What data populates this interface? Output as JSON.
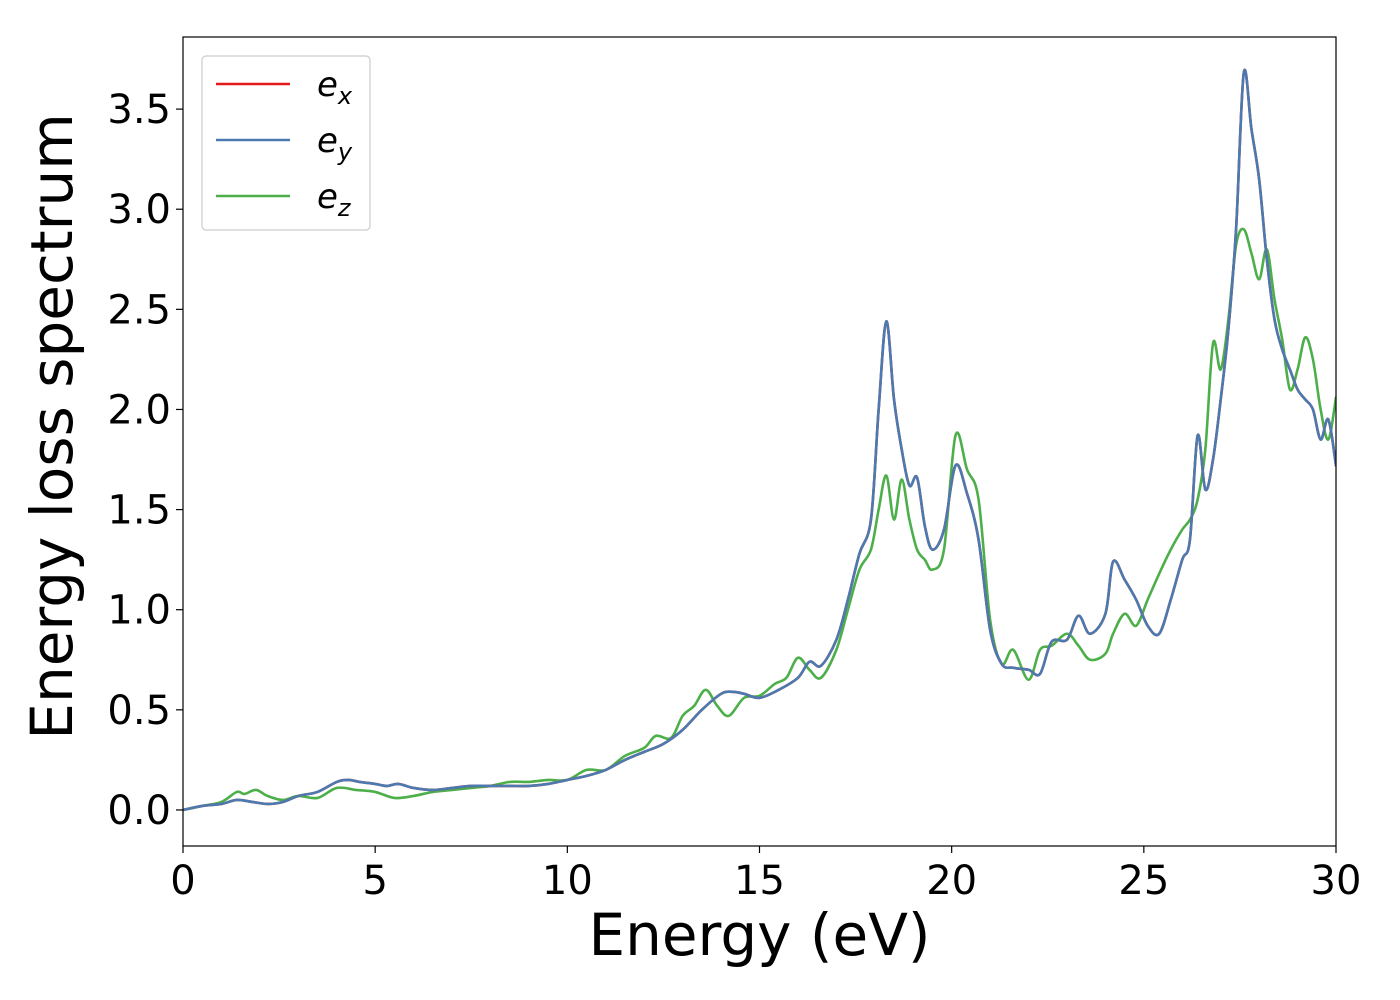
{
  "chart_data": {
    "type": "line",
    "title": "",
    "xlabel": "Energy (eV)",
    "ylabel": "Energy loss spectrum",
    "xlim": [
      0,
      30
    ],
    "ylim": [
      -0.18,
      3.86
    ],
    "xticks": [
      0,
      5,
      10,
      15,
      20,
      25,
      30
    ],
    "xtick_labels": [
      "0",
      "5",
      "10",
      "15",
      "20",
      "25",
      "30"
    ],
    "yticks": [
      0.0,
      0.5,
      1.0,
      1.5,
      2.0,
      2.5,
      3.0,
      3.5
    ],
    "ytick_labels": [
      "0.0",
      "0.5",
      "1.0",
      "1.5",
      "2.0",
      "2.5",
      "3.0",
      "3.5"
    ],
    "grid": false,
    "legend_position": "top-left",
    "series": [
      {
        "name": "e_x",
        "legend_base": "e",
        "legend_sub": "x",
        "color": "#e41a1c",
        "x": [
          0,
          0.5,
          1.0,
          1.4,
          1.8,
          2.2,
          2.6,
          3.0,
          3.5,
          4.0,
          4.3,
          4.6,
          5.0,
          5.3,
          5.6,
          6.0,
          6.5,
          7.0,
          7.5,
          8.0,
          8.5,
          9.0,
          9.5,
          10.0,
          10.5,
          11.0,
          11.5,
          12.0,
          12.5,
          13.0,
          13.5,
          14.0,
          14.3,
          14.6,
          15.0,
          15.5,
          16.0,
          16.3,
          16.6,
          17.0,
          17.3,
          17.6,
          17.9,
          18.1,
          18.3,
          18.5,
          18.7,
          18.9,
          19.1,
          19.3,
          19.5,
          19.8,
          20.1,
          20.4,
          20.7,
          21.0,
          21.3,
          21.6,
          22.0,
          22.3,
          22.6,
          23.0,
          23.3,
          23.6,
          24.0,
          24.2,
          24.5,
          24.8,
          25.1,
          25.4,
          25.7,
          26.0,
          26.2,
          26.4,
          26.6,
          26.8,
          27.0,
          27.2,
          27.4,
          27.6,
          27.8,
          28.0,
          28.2,
          28.4,
          28.6,
          28.8,
          29.0,
          29.2,
          29.4,
          29.6,
          29.8,
          30.0
        ],
        "y": [
          0.0,
          0.02,
          0.03,
          0.05,
          0.04,
          0.03,
          0.04,
          0.07,
          0.09,
          0.14,
          0.15,
          0.14,
          0.13,
          0.12,
          0.13,
          0.11,
          0.1,
          0.11,
          0.12,
          0.12,
          0.12,
          0.12,
          0.13,
          0.15,
          0.17,
          0.2,
          0.25,
          0.29,
          0.33,
          0.4,
          0.5,
          0.58,
          0.59,
          0.58,
          0.56,
          0.6,
          0.66,
          0.74,
          0.72,
          0.85,
          1.05,
          1.28,
          1.45,
          2.0,
          2.44,
          2.05,
          1.8,
          1.62,
          1.66,
          1.42,
          1.3,
          1.4,
          1.72,
          1.58,
          1.35,
          0.9,
          0.73,
          0.71,
          0.7,
          0.68,
          0.84,
          0.85,
          0.97,
          0.88,
          0.98,
          1.24,
          1.15,
          1.05,
          0.92,
          0.88,
          1.05,
          1.25,
          1.35,
          1.87,
          1.6,
          1.75,
          2.05,
          2.4,
          2.9,
          3.68,
          3.4,
          3.15,
          2.75,
          2.45,
          2.3,
          2.2,
          2.1,
          2.05,
          2.0,
          1.85,
          1.95,
          1.72
        ]
      },
      {
        "name": "e_y",
        "legend_base": "e",
        "legend_sub": "y",
        "color": "#4a7ab0",
        "x": [
          0,
          0.5,
          1.0,
          1.4,
          1.8,
          2.2,
          2.6,
          3.0,
          3.5,
          4.0,
          4.3,
          4.6,
          5.0,
          5.3,
          5.6,
          6.0,
          6.5,
          7.0,
          7.5,
          8.0,
          8.5,
          9.0,
          9.5,
          10.0,
          10.5,
          11.0,
          11.5,
          12.0,
          12.5,
          13.0,
          13.5,
          14.0,
          14.3,
          14.6,
          15.0,
          15.5,
          16.0,
          16.3,
          16.6,
          17.0,
          17.3,
          17.6,
          17.9,
          18.1,
          18.3,
          18.5,
          18.7,
          18.9,
          19.1,
          19.3,
          19.5,
          19.8,
          20.1,
          20.4,
          20.7,
          21.0,
          21.3,
          21.6,
          22.0,
          22.3,
          22.6,
          23.0,
          23.3,
          23.6,
          24.0,
          24.2,
          24.5,
          24.8,
          25.1,
          25.4,
          25.7,
          26.0,
          26.2,
          26.4,
          26.6,
          26.8,
          27.0,
          27.2,
          27.4,
          27.6,
          27.8,
          28.0,
          28.2,
          28.4,
          28.6,
          28.8,
          29.0,
          29.2,
          29.4,
          29.6,
          29.8,
          30.0
        ],
        "y": [
          0.0,
          0.02,
          0.03,
          0.05,
          0.04,
          0.03,
          0.04,
          0.07,
          0.09,
          0.14,
          0.15,
          0.14,
          0.13,
          0.12,
          0.13,
          0.11,
          0.1,
          0.11,
          0.12,
          0.12,
          0.12,
          0.12,
          0.13,
          0.15,
          0.17,
          0.2,
          0.25,
          0.29,
          0.33,
          0.4,
          0.5,
          0.58,
          0.59,
          0.58,
          0.56,
          0.6,
          0.66,
          0.74,
          0.72,
          0.85,
          1.05,
          1.28,
          1.45,
          2.0,
          2.44,
          2.05,
          1.8,
          1.62,
          1.66,
          1.42,
          1.3,
          1.4,
          1.72,
          1.58,
          1.35,
          0.9,
          0.73,
          0.71,
          0.7,
          0.68,
          0.84,
          0.85,
          0.97,
          0.88,
          0.98,
          1.24,
          1.15,
          1.05,
          0.92,
          0.88,
          1.05,
          1.25,
          1.35,
          1.87,
          1.6,
          1.75,
          2.05,
          2.4,
          2.9,
          3.68,
          3.4,
          3.15,
          2.75,
          2.45,
          2.3,
          2.2,
          2.1,
          2.05,
          2.0,
          1.85,
          1.95,
          1.72
        ]
      },
      {
        "name": "e_z",
        "legend_base": "e",
        "legend_sub": "z",
        "color": "#4daf4a",
        "x": [
          0,
          0.5,
          1.0,
          1.4,
          1.6,
          1.9,
          2.2,
          2.6,
          3.0,
          3.5,
          4.0,
          4.5,
          5.0,
          5.5,
          6.0,
          6.5,
          7.0,
          7.5,
          8.0,
          8.5,
          9.0,
          9.5,
          10.0,
          10.5,
          11.0,
          11.5,
          12.0,
          12.3,
          12.7,
          13.0,
          13.3,
          13.6,
          13.9,
          14.2,
          14.6,
          15.0,
          15.4,
          15.7,
          16.0,
          16.3,
          16.6,
          17.0,
          17.3,
          17.6,
          17.9,
          18.1,
          18.3,
          18.5,
          18.7,
          18.9,
          19.1,
          19.3,
          19.5,
          19.8,
          20.1,
          20.4,
          20.7,
          21.0,
          21.3,
          21.6,
          22.0,
          22.3,
          22.6,
          23.0,
          23.3,
          23.6,
          24.0,
          24.2,
          24.5,
          24.8,
          25.1,
          25.4,
          25.7,
          26.0,
          26.2,
          26.4,
          26.6,
          26.8,
          27.0,
          27.2,
          27.4,
          27.6,
          27.8,
          28.0,
          28.2,
          28.4,
          28.6,
          28.8,
          29.0,
          29.2,
          29.4,
          29.6,
          29.8,
          30.0
        ],
        "y": [
          0.0,
          0.02,
          0.04,
          0.09,
          0.08,
          0.1,
          0.07,
          0.05,
          0.07,
          0.06,
          0.11,
          0.1,
          0.09,
          0.06,
          0.07,
          0.09,
          0.1,
          0.11,
          0.12,
          0.14,
          0.14,
          0.15,
          0.15,
          0.2,
          0.2,
          0.27,
          0.31,
          0.37,
          0.36,
          0.47,
          0.52,
          0.6,
          0.52,
          0.47,
          0.56,
          0.57,
          0.63,
          0.66,
          0.76,
          0.7,
          0.66,
          0.8,
          1.0,
          1.2,
          1.3,
          1.5,
          1.67,
          1.45,
          1.65,
          1.45,
          1.3,
          1.25,
          1.2,
          1.3,
          1.87,
          1.7,
          1.55,
          0.95,
          0.73,
          0.8,
          0.65,
          0.8,
          0.82,
          0.88,
          0.82,
          0.75,
          0.78,
          0.88,
          0.98,
          0.92,
          1.05,
          1.18,
          1.3,
          1.4,
          1.45,
          1.55,
          1.8,
          2.33,
          2.2,
          2.45,
          2.82,
          2.9,
          2.78,
          2.65,
          2.8,
          2.55,
          2.35,
          2.1,
          2.2,
          2.36,
          2.25,
          2.0,
          1.85,
          2.06
        ]
      }
    ]
  }
}
